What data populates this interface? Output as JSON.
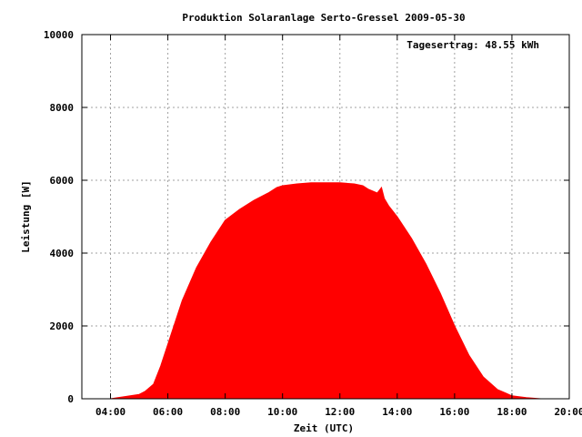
{
  "chart_data": {
    "type": "area",
    "title": "Produktion Solaranlage Serto-Gressel 2009-05-30",
    "xlabel": "Zeit (UTC)",
    "ylabel": "Leistung [W]",
    "annotation": "Tagesertrag: 48.55 kWh",
    "xlim": [
      3.0,
      20.0
    ],
    "ylim": [
      0,
      10000
    ],
    "x_ticks": [
      4,
      6,
      8,
      10,
      12,
      14,
      16,
      18,
      20
    ],
    "x_tick_labels": [
      "04:00",
      "06:00",
      "08:00",
      "10:00",
      "12:00",
      "14:00",
      "16:00",
      "18:00",
      "20:00"
    ],
    "y_ticks": [
      0,
      2000,
      4000,
      6000,
      8000,
      10000
    ],
    "y_tick_labels": [
      "0",
      "2000",
      "4000",
      "6000",
      "8000",
      "10000"
    ],
    "grid": true,
    "series_color": "#ff0000",
    "series": [
      {
        "x": [
          4.0,
          4.5,
          5.0,
          5.2,
          5.5,
          5.75,
          6.0,
          6.5,
          7.0,
          7.5,
          8.0,
          8.5,
          9.0,
          9.5,
          9.8,
          10.0,
          10.5,
          11.0,
          11.5,
          12.0,
          12.5,
          12.8,
          13.0,
          13.3,
          13.45,
          13.55,
          13.7,
          14.0,
          14.5,
          15.0,
          15.5,
          16.0,
          16.5,
          17.0,
          17.5,
          17.8,
          18.0,
          18.5,
          19.0
        ],
        "y": [
          0,
          60,
          120,
          200,
          400,
          900,
          1500,
          2700,
          3600,
          4300,
          4900,
          5200,
          5450,
          5650,
          5800,
          5850,
          5900,
          5930,
          5930,
          5930,
          5900,
          5850,
          5750,
          5650,
          5800,
          5500,
          5300,
          5000,
          4400,
          3700,
          2900,
          2000,
          1200,
          600,
          250,
          150,
          80,
          30,
          0
        ]
      }
    ]
  }
}
